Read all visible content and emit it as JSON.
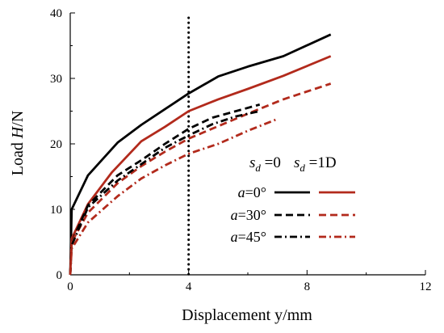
{
  "chart_data": {
    "type": "line",
    "xlabel": "Displacement y/mm",
    "ylabel_prefix": "Load ",
    "ylabel_var": "H",
    "ylabel_suffix": "/N",
    "xlim": [
      0,
      12
    ],
    "ylim": [
      0,
      40
    ],
    "xticks": [
      "0",
      "4",
      "8",
      "12"
    ],
    "yticks": [
      "0",
      "10",
      "20",
      "30",
      "40"
    ],
    "grid": false,
    "legend_position": "right-middle",
    "legend_columns": [
      {
        "symbol": "s",
        "subscript": "d",
        "text": " =0"
      },
      {
        "symbol": "s",
        "subscript": "d",
        "text": " =1D"
      }
    ],
    "legend_rows": [
      {
        "var": "a",
        "text": "=0°"
      },
      {
        "var": "a",
        "text": "=30°"
      },
      {
        "var": "a",
        "text": "=45°"
      }
    ],
    "reference_line": {
      "x": 4,
      "style": "dotted",
      "color": "#000000"
    },
    "series": [
      {
        "key": "a0_sd0",
        "row": 0,
        "col": 0,
        "color": "#000000",
        "dash": "solid",
        "x": [
          0,
          0.05,
          0.6,
          1.6,
          2.4,
          3.2,
          4.0,
          5.0,
          6.0,
          7.2,
          8.8
        ],
        "y": [
          0,
          10.0,
          15.2,
          20.2,
          22.9,
          25.3,
          27.7,
          30.3,
          31.8,
          33.4,
          36.7
        ]
      },
      {
        "key": "a0_sd1",
        "row": 0,
        "col": 1,
        "color": "#b22a1c",
        "dash": "solid",
        "x": [
          0,
          0.05,
          0.6,
          1.4,
          2.4,
          3.2,
          4.0,
          5.0,
          6.0,
          7.2,
          8.8
        ],
        "y": [
          0,
          5.5,
          10.8,
          15.6,
          20.4,
          22.6,
          25.0,
          26.8,
          28.4,
          30.4,
          33.4
        ]
      },
      {
        "key": "a30_sd0",
        "row": 1,
        "col": 0,
        "color": "#000000",
        "dash": "dash",
        "x": [
          0,
          0.05,
          0.6,
          1.6,
          2.4,
          3.2,
          4.0,
          4.8,
          5.6,
          6.4
        ],
        "y": [
          0,
          5.0,
          10.6,
          15.2,
          17.5,
          20.0,
          22.3,
          24.0,
          25.0,
          26.0
        ]
      },
      {
        "key": "a30_sd1",
        "row": 1,
        "col": 1,
        "color": "#b22a1c",
        "dash": "dash",
        "x": [
          0,
          0.05,
          0.6,
          1.6,
          2.4,
          3.2,
          4.0,
          5.0,
          6.0,
          7.2,
          8.8
        ],
        "y": [
          0,
          5.0,
          9.5,
          14.0,
          16.6,
          18.8,
          20.8,
          22.7,
          24.6,
          26.8,
          29.2
        ]
      },
      {
        "key": "a45_sd0",
        "row": 2,
        "col": 0,
        "color": "#000000",
        "dash": "dashdot",
        "x": [
          0,
          0.05,
          0.6,
          1.6,
          2.4,
          3.2,
          4.0,
          4.8,
          5.6,
          6.4
        ],
        "y": [
          0,
          4.5,
          10.3,
          14.4,
          16.9,
          19.4,
          21.3,
          23.0,
          24.2,
          25.0
        ]
      },
      {
        "key": "a45_sd1",
        "row": 2,
        "col": 1,
        "color": "#b22a1c",
        "dash": "dashdot",
        "x": [
          0,
          0.05,
          0.6,
          1.6,
          2.4,
          3.2,
          4.0,
          5.0,
          6.0,
          7.0
        ],
        "y": [
          0,
          4.0,
          8.0,
          12.0,
          14.7,
          16.7,
          18.5,
          20.0,
          22.0,
          23.8
        ]
      }
    ]
  }
}
